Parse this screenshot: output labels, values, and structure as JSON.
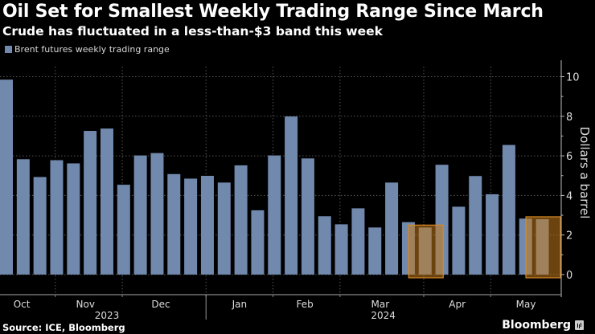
{
  "header": {
    "title": "Oil Set for Smallest Weekly Trading Range Since March",
    "subtitle": "Crude has fluctuated in a less-than-$3 band this week"
  },
  "footer": {
    "source": "Source: ICE, Bloomberg",
    "brand": "Bloomberg"
  },
  "colors": {
    "background": "#000000",
    "bar": "#7189ad",
    "highlight_fill": "#c47a1a",
    "highlight_border": "#d98a24",
    "grid": "#555555",
    "axis": "#bbbbbb"
  },
  "chart_data": {
    "type": "bar",
    "title": "Oil Set for Smallest Weekly Trading Range Since March",
    "subtitle": "Crude has fluctuated in a less-than-$3 band this week",
    "legend": {
      "entries": [
        "Brent futures weekly trading range"
      ],
      "placement": "top-left"
    },
    "xlabel": "",
    "ylabel": "Dollars a barrel",
    "y_axis_side": "right",
    "ylim": [
      0,
      10.5
    ],
    "yticks": [
      0,
      2,
      4,
      6,
      8,
      10
    ],
    "grid": true,
    "month_labels": [
      {
        "label": "Oct",
        "center_index": 1.3
      },
      {
        "label": "Nov",
        "center_index": 5.1
      },
      {
        "label": "Dec",
        "center_index": 9.6
      },
      {
        "label": "Jan",
        "center_index": 14.3
      },
      {
        "label": "Feb",
        "center_index": 18.2
      },
      {
        "label": "Mar",
        "center_index": 22.7
      },
      {
        "label": "Apr",
        "center_index": 27.3
      },
      {
        "label": "May",
        "center_index": 31.4
      }
    ],
    "month_boundaries": [
      3.3,
      7.3,
      12.3,
      16.3,
      20.3,
      25.3,
      29.3
    ],
    "year_labels": [
      {
        "label": "2023",
        "center_index": 6.0
      },
      {
        "label": "2024",
        "center_index": 22.5
      }
    ],
    "year_boundary": 12.3,
    "series": [
      {
        "name": "Brent futures weekly trading range",
        "values": [
          9.85,
          5.83,
          4.93,
          5.78,
          5.62,
          7.26,
          7.38,
          4.54,
          6.02,
          6.14,
          5.08,
          4.85,
          4.99,
          4.65,
          5.52,
          3.25,
          6.02,
          7.99,
          5.87,
          2.95,
          2.54,
          3.35,
          2.38,
          4.65,
          2.65,
          2.38,
          5.55,
          3.43,
          4.98,
          4.06,
          6.55,
          2.83,
          2.8
        ]
      }
    ],
    "highlighted_indices": [
      25,
      32
    ]
  }
}
